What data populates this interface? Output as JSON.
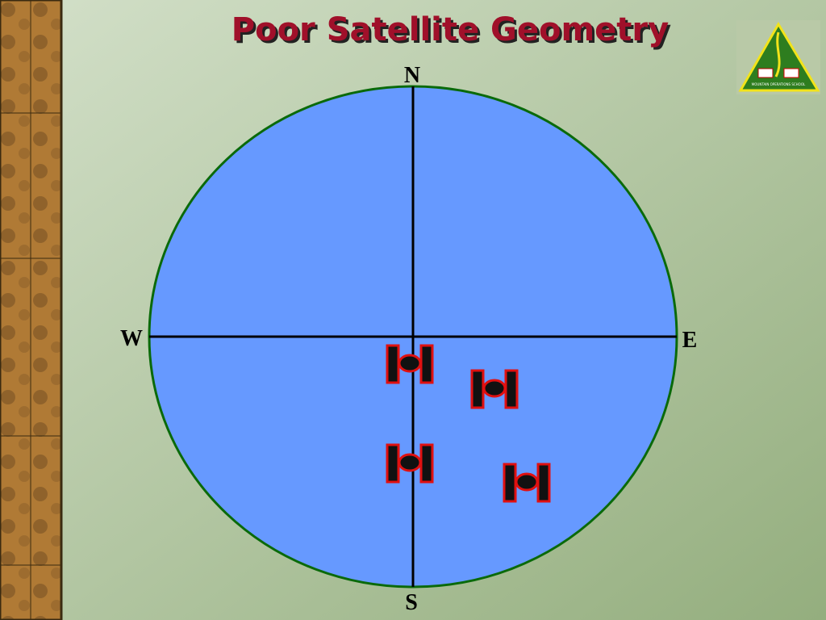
{
  "header": {
    "title": "Poor Satellite Geometry"
  },
  "compass": {
    "north": "N",
    "south": "S",
    "west": "W",
    "east": "E"
  },
  "logo": {
    "text": "MOUNTAIN OPERATIONS SCHOOL"
  }
}
